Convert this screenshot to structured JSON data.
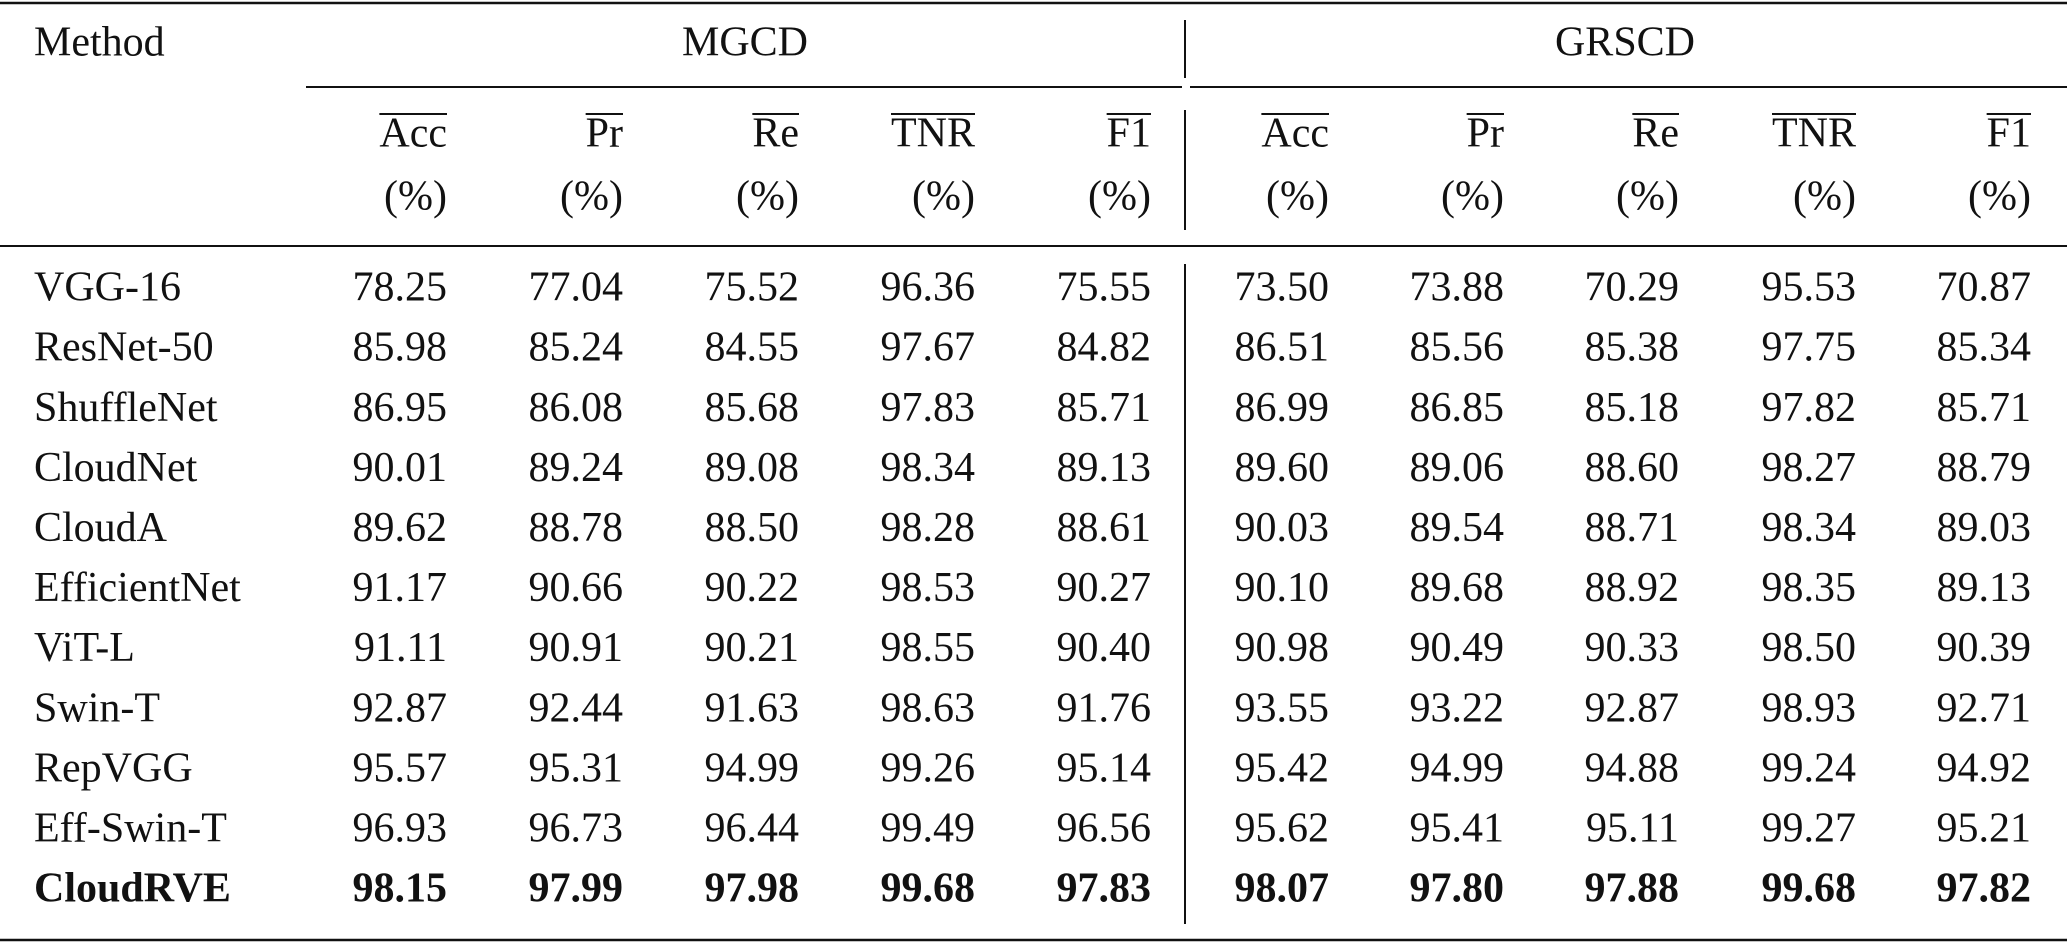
{
  "table": {
    "method_header": "Method",
    "groups": [
      "MGCD",
      "GRSCD"
    ],
    "metrics": [
      "Acc",
      "Pr",
      "Re",
      "TNR",
      "F1"
    ],
    "unit": "(%)",
    "rows": [
      {
        "method": "VGG-16",
        "values": [
          "78.25",
          "77.04",
          "75.52",
          "96.36",
          "75.55",
          "73.50",
          "73.88",
          "70.29",
          "95.53",
          "70.87"
        ]
      },
      {
        "method": "ResNet-50",
        "values": [
          "85.98",
          "85.24",
          "84.55",
          "97.67",
          "84.82",
          "86.51",
          "85.56",
          "85.38",
          "97.75",
          "85.34"
        ]
      },
      {
        "method": "ShuffleNet",
        "values": [
          "86.95",
          "86.08",
          "85.68",
          "97.83",
          "85.71",
          "86.99",
          "86.85",
          "85.18",
          "97.82",
          "85.71"
        ]
      },
      {
        "method": "CloudNet",
        "values": [
          "90.01",
          "89.24",
          "89.08",
          "98.34",
          "89.13",
          "89.60",
          "89.06",
          "88.60",
          "98.27",
          "88.79"
        ]
      },
      {
        "method": "CloudA",
        "values": [
          "89.62",
          "88.78",
          "88.50",
          "98.28",
          "88.61",
          "90.03",
          "89.54",
          "88.71",
          "98.34",
          "89.03"
        ]
      },
      {
        "method": "EfficientNet",
        "values": [
          "91.17",
          "90.66",
          "90.22",
          "98.53",
          "90.27",
          "90.10",
          "89.68",
          "88.92",
          "98.35",
          "89.13"
        ]
      },
      {
        "method": "ViT-L",
        "values": [
          "91.11",
          "90.91",
          "90.21",
          "98.55",
          "90.40",
          "90.98",
          "90.49",
          "90.33",
          "98.50",
          "90.39"
        ]
      },
      {
        "method": "Swin-T",
        "values": [
          "92.87",
          "92.44",
          "91.63",
          "98.63",
          "91.76",
          "93.55",
          "93.22",
          "92.87",
          "98.93",
          "92.71"
        ]
      },
      {
        "method": "RepVGG",
        "values": [
          "95.57",
          "95.31",
          "94.99",
          "99.26",
          "95.14",
          "95.42",
          "94.99",
          "94.88",
          "99.24",
          "94.92"
        ]
      },
      {
        "method": "Eff-Swin-T",
        "values": [
          "96.93",
          "96.73",
          "96.44",
          "99.49",
          "96.56",
          "95.62",
          "95.41",
          "95.11",
          "99.27",
          "95.21"
        ]
      },
      {
        "method": "CloudRVE",
        "bold": true,
        "values": [
          "98.15",
          "97.99",
          "97.98",
          "99.68",
          "97.83",
          "98.07",
          "97.80",
          "97.88",
          "99.68",
          "97.82"
        ]
      }
    ]
  }
}
